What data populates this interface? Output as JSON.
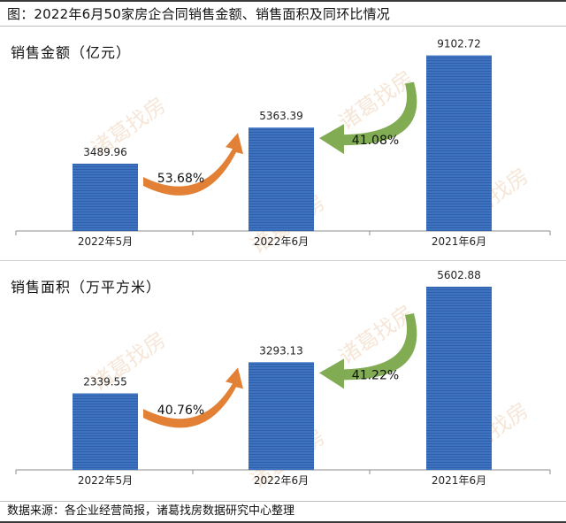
{
  "figure_title": "图：2022年6月50家房企合同销售金额、销售面积及同环比情况",
  "source_note": "数据来源：各企业经营简报，诸葛找房数据研究中心整理",
  "watermark_text": "诸葛找房",
  "colors": {
    "bar": "#3d73c1",
    "bar_stripe": "#2f5fa8",
    "mom_arrow": "#e07a2a",
    "yoy_arrow": "#7aa84a",
    "axis": "#8c8c8c"
  },
  "chart_data": [
    {
      "type": "bar",
      "title": "销售金额（亿元）",
      "categories": [
        "2022年5月",
        "2022年6月",
        "2021年6月"
      ],
      "values": [
        3489.96,
        5363.39,
        9102.72
      ],
      "value_labels": [
        "3489.96",
        "5363.39",
        "9102.72"
      ],
      "ylim": [
        0,
        9500
      ],
      "annotations": [
        {
          "text": "53.68%",
          "kind": "mom",
          "from": "2022年5月",
          "to": "2022年6月"
        },
        {
          "text": "41.08%",
          "kind": "yoy",
          "from": "2021年6月",
          "to": "2022年6月"
        }
      ]
    },
    {
      "type": "bar",
      "title": "销售面积（万平方米）",
      "categories": [
        "2022年5月",
        "2022年6月",
        "2021年6月"
      ],
      "values": [
        2339.55,
        3293.13,
        5602.88
      ],
      "value_labels": [
        "2339.55",
        "3293.13",
        "5602.88"
      ],
      "ylim": [
        0,
        5900
      ],
      "annotations": [
        {
          "text": "40.76%",
          "kind": "mom",
          "from": "2022年5月",
          "to": "2022年6月"
        },
        {
          "text": "41.22%",
          "kind": "yoy",
          "from": "2021年6月",
          "to": "2022年6月"
        }
      ]
    }
  ]
}
